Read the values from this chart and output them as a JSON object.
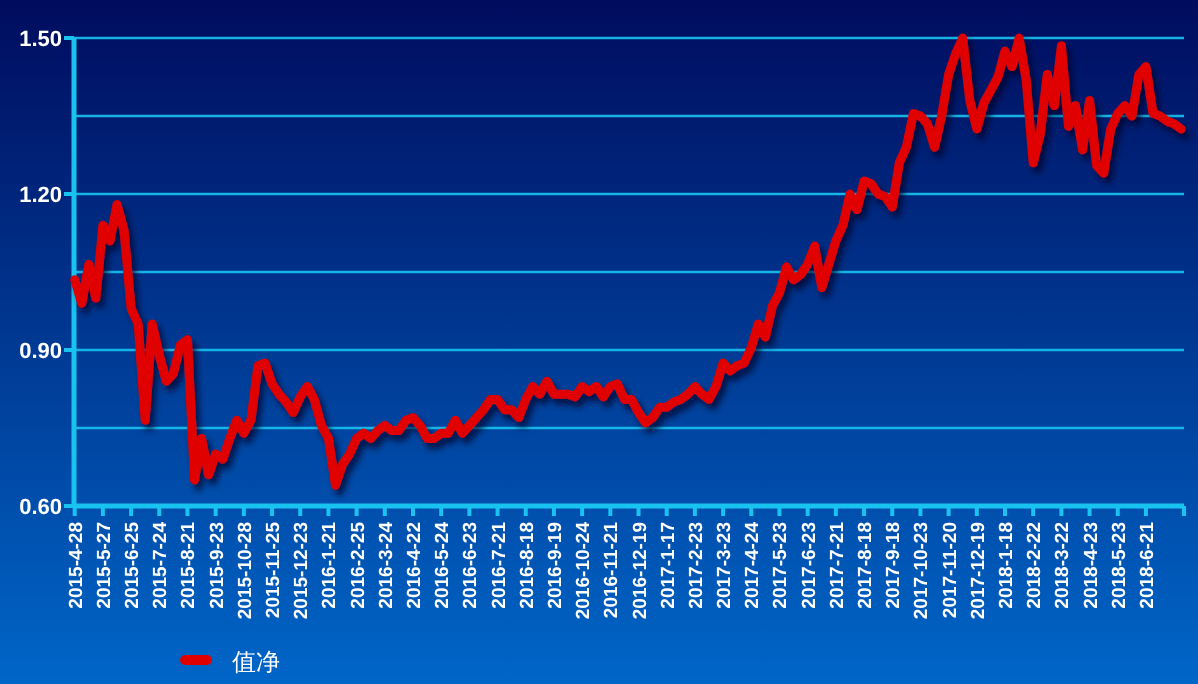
{
  "chart_data": {
    "type": "line",
    "grid": "y",
    "legend": "bottom left",
    "marker": "none",
    "line_style": "solid",
    "ylim": [
      0.6,
      1.5
    ],
    "yticks": [
      {
        "value": 0.6,
        "label": "0.60"
      },
      {
        "value": 0.75,
        "label": null
      },
      {
        "value": 0.9,
        "label": "0.90"
      },
      {
        "value": 1.05,
        "label": null
      },
      {
        "value": 1.2,
        "label": "1.20"
      },
      {
        "value": 1.35,
        "label": null
      },
      {
        "value": 1.5,
        "label": "1.50"
      }
    ],
    "categories": [
      "2015-4-28",
      null,
      null,
      null,
      "2015-5-27",
      null,
      null,
      null,
      "2015-6-25",
      null,
      null,
      null,
      "2015-7-24",
      null,
      null,
      null,
      "2015-8-21",
      null,
      null,
      null,
      "2015-9-23",
      null,
      null,
      null,
      "2015-10-28",
      null,
      null,
      null,
      "2015-11-25",
      null,
      null,
      null,
      "2015-12-23",
      null,
      null,
      null,
      "2016-1-21",
      null,
      null,
      null,
      "2016-2-25",
      null,
      null,
      null,
      "2016-3-24",
      null,
      null,
      null,
      "2016-4-22",
      null,
      null,
      null,
      "2016-5-24",
      null,
      null,
      null,
      "2016-6-23",
      null,
      null,
      null,
      "2016-7-21",
      null,
      null,
      null,
      "2016-8-18",
      null,
      null,
      null,
      "2016-9-19",
      null,
      null,
      null,
      "2016-10-24",
      null,
      null,
      null,
      "2016-11-21",
      null,
      null,
      null,
      "2016-12-19",
      null,
      null,
      null,
      "2017-1-17",
      null,
      null,
      null,
      "2017-2-23",
      null,
      null,
      null,
      "2017-3-23",
      null,
      null,
      null,
      "2017-4-24",
      null,
      null,
      null,
      "2017-5-23",
      null,
      null,
      null,
      "2017-6-23",
      null,
      null,
      null,
      "2017-7-21",
      null,
      null,
      null,
      "2017-8-18",
      null,
      null,
      null,
      "2017-9-18",
      null,
      null,
      null,
      "2017-10-23",
      null,
      null,
      null,
      "2017-11-20",
      null,
      null,
      null,
      "2017-12-19",
      null,
      null,
      null,
      "2018-1-18",
      null,
      null,
      null,
      "2018-2-22",
      null,
      null,
      null,
      "2018-3-22",
      null,
      null,
      null,
      "2018-4-23",
      null,
      null,
      null,
      "2018-5-23",
      null,
      null,
      null,
      "2018-6-21",
      null,
      null,
      null,
      null,
      null
    ],
    "series": [
      {
        "name": "值净",
        "color": "#e00000",
        "values": [
          1.035,
          0.99,
          1.065,
          1.0,
          1.14,
          1.11,
          1.18,
          1.13,
          0.98,
          0.95,
          0.765,
          0.95,
          0.89,
          0.84,
          0.855,
          0.91,
          0.92,
          0.65,
          0.73,
          0.66,
          0.7,
          0.69,
          0.73,
          0.765,
          0.74,
          0.765,
          0.87,
          0.875,
          0.835,
          0.815,
          0.8,
          0.78,
          0.81,
          0.83,
          0.805,
          0.755,
          0.73,
          0.64,
          0.68,
          0.7,
          0.73,
          0.74,
          0.73,
          0.745,
          0.755,
          0.745,
          0.745,
          0.765,
          0.77,
          0.755,
          0.73,
          0.73,
          0.74,
          0.74,
          0.765,
          0.74,
          0.755,
          0.77,
          0.785,
          0.805,
          0.805,
          0.785,
          0.785,
          0.77,
          0.805,
          0.83,
          0.815,
          0.84,
          0.815,
          0.815,
          0.815,
          0.81,
          0.83,
          0.82,
          0.83,
          0.81,
          0.83,
          0.835,
          0.805,
          0.805,
          0.78,
          0.76,
          0.77,
          0.79,
          0.79,
          0.8,
          0.805,
          0.815,
          0.83,
          0.815,
          0.805,
          0.83,
          0.875,
          0.86,
          0.87,
          0.875,
          0.905,
          0.95,
          0.925,
          0.985,
          1.01,
          1.06,
          1.035,
          1.045,
          1.065,
          1.1,
          1.02,
          1.065,
          1.11,
          1.14,
          1.2,
          1.17,
          1.225,
          1.22,
          1.2,
          1.195,
          1.175,
          1.26,
          1.29,
          1.355,
          1.35,
          1.335,
          1.29,
          1.35,
          1.43,
          1.47,
          1.5,
          1.38,
          1.325,
          1.375,
          1.4,
          1.425,
          1.475,
          1.445,
          1.5,
          1.42,
          1.26,
          1.315,
          1.43,
          1.37,
          1.485,
          1.33,
          1.37,
          1.285,
          1.38,
          1.255,
          1.24,
          1.325,
          1.355,
          1.37,
          1.35,
          1.43,
          1.445,
          1.355,
          1.35,
          1.34,
          1.335,
          1.325
        ]
      }
    ]
  }
}
